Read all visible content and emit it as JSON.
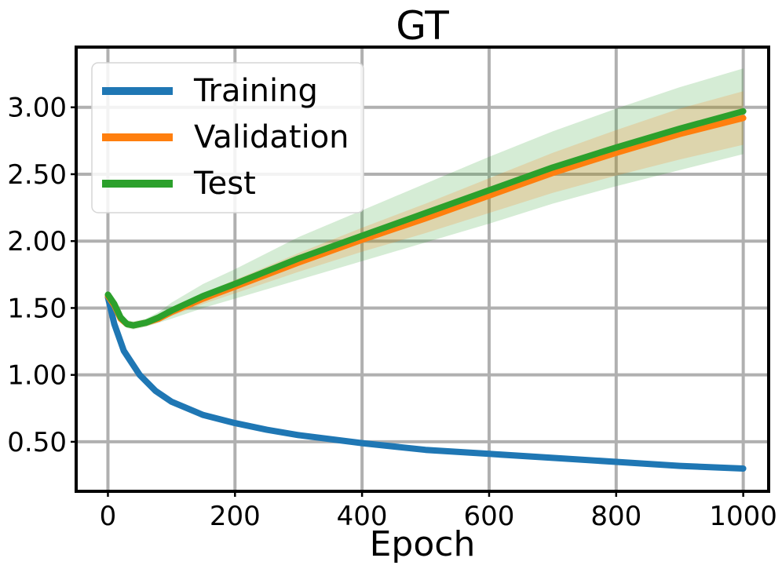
{
  "chart_data": {
    "type": "line",
    "title": "GT",
    "xlabel": "Epoch",
    "ylabel": "",
    "xlim": [
      -50,
      1040
    ],
    "ylim": [
      0.13,
      3.45
    ],
    "xticks": [
      0,
      200,
      400,
      600,
      800,
      1000
    ],
    "xtick_labels": [
      "0",
      "200",
      "400",
      "600",
      "800",
      "1000"
    ],
    "yticks": [
      0.5,
      1.0,
      1.5,
      2.0,
      2.5,
      3.0
    ],
    "ytick_labels": [
      "0.50",
      "1.00",
      "1.50",
      "2.00",
      "2.50",
      "3.00"
    ],
    "grid": true,
    "legend_position": "top-left",
    "series": [
      {
        "name": "Training",
        "color": "#1f77b4",
        "x": [
          0,
          10,
          25,
          50,
          75,
          100,
          150,
          200,
          250,
          300,
          400,
          500,
          600,
          700,
          800,
          900,
          1000
        ],
        "y": [
          1.58,
          1.38,
          1.18,
          1.0,
          0.88,
          0.8,
          0.7,
          0.64,
          0.59,
          0.55,
          0.49,
          0.44,
          0.41,
          0.38,
          0.35,
          0.32,
          0.3
        ]
      },
      {
        "name": "Validation",
        "color": "#ff7f0e",
        "x": [
          0,
          10,
          20,
          30,
          40,
          60,
          80,
          100,
          150,
          200,
          300,
          400,
          500,
          600,
          700,
          800,
          900,
          1000
        ],
        "y": [
          1.59,
          1.52,
          1.42,
          1.38,
          1.37,
          1.39,
          1.42,
          1.47,
          1.57,
          1.66,
          1.84,
          2.01,
          2.17,
          2.34,
          2.51,
          2.66,
          2.8,
          2.92
        ],
        "band_lower": [
          1.57,
          1.5,
          1.4,
          1.36,
          1.35,
          1.37,
          1.4,
          1.44,
          1.53,
          1.61,
          1.77,
          1.92,
          2.06,
          2.21,
          2.36,
          2.49,
          2.61,
          2.72
        ],
        "band_upper": [
          1.61,
          1.54,
          1.44,
          1.4,
          1.39,
          1.41,
          1.44,
          1.5,
          1.61,
          1.71,
          1.91,
          2.1,
          2.28,
          2.47,
          2.66,
          2.83,
          2.99,
          3.12
        ]
      },
      {
        "name": "Test",
        "color": "#2ca02c",
        "x": [
          0,
          10,
          20,
          30,
          40,
          60,
          80,
          100,
          150,
          200,
          300,
          400,
          500,
          600,
          700,
          800,
          900,
          1000
        ],
        "y": [
          1.6,
          1.53,
          1.43,
          1.38,
          1.37,
          1.39,
          1.43,
          1.48,
          1.59,
          1.68,
          1.87,
          2.04,
          2.21,
          2.38,
          2.55,
          2.7,
          2.84,
          2.97
        ],
        "band_lower": [
          1.58,
          1.5,
          1.4,
          1.35,
          1.34,
          1.36,
          1.39,
          1.42,
          1.5,
          1.57,
          1.71,
          1.85,
          1.99,
          2.13,
          2.28,
          2.41,
          2.53,
          2.65
        ],
        "band_upper": [
          1.62,
          1.56,
          1.46,
          1.41,
          1.4,
          1.42,
          1.47,
          1.54,
          1.68,
          1.79,
          2.03,
          2.23,
          2.43,
          2.63,
          2.82,
          2.99,
          3.15,
          3.29
        ]
      }
    ]
  }
}
